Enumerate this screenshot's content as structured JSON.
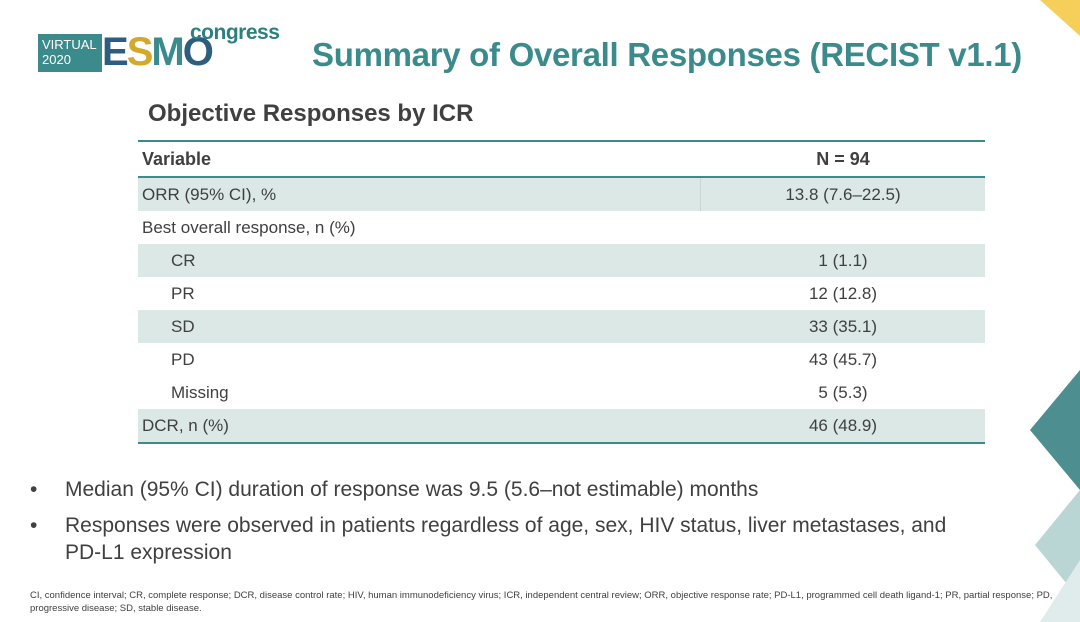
{
  "logo": {
    "virtual_line1": "VIRTUAL",
    "virtual_line2": "2020",
    "esmo": [
      "E",
      "S",
      "M",
      "O"
    ],
    "congress": "congress"
  },
  "title": "Summary of Overall Responses (RECIST v1.1)",
  "subtitle": "Objective Responses by ICR",
  "table": {
    "headers": [
      "Variable",
      "N = 94"
    ],
    "rows": [
      {
        "label": "ORR (95% CI), %",
        "value": "13.8 (7.6–22.5)"
      },
      {
        "label": "Best overall response, n (%)",
        "value": ""
      },
      {
        "label": "CR",
        "value": "1 (1.1)"
      },
      {
        "label": "PR",
        "value": "12 (12.8)"
      },
      {
        "label": "SD",
        "value": "33 (35.1)"
      },
      {
        "label": "PD",
        "value": "43 (45.7)"
      },
      {
        "label": "Missing",
        "value": "5 (5.3)"
      },
      {
        "label": "DCR, n (%)",
        "value": "46 (48.9)"
      }
    ]
  },
  "bullets": [
    "Median (95% CI) duration of response was 9.5 (5.6–not estimable) months",
    "Responses were observed in patients regardless of age, sex, HIV status, liver metastases, and PD-L1 expression"
  ],
  "bullet_symbol": "•",
  "footnote": "CI, confidence interval; CR, complete response; DCR, disease control rate; HIV, human immunodeficiency virus; ICR, independent central review; ORR, objective response rate; PD-L1, programmed cell death ligand-1; PR, partial response; PD, progressive disease; SD, stable disease.",
  "colors": {
    "accent": "#3b8b8c",
    "row_shade": "#dbe8e6",
    "gold": "#f5cf5a"
  }
}
